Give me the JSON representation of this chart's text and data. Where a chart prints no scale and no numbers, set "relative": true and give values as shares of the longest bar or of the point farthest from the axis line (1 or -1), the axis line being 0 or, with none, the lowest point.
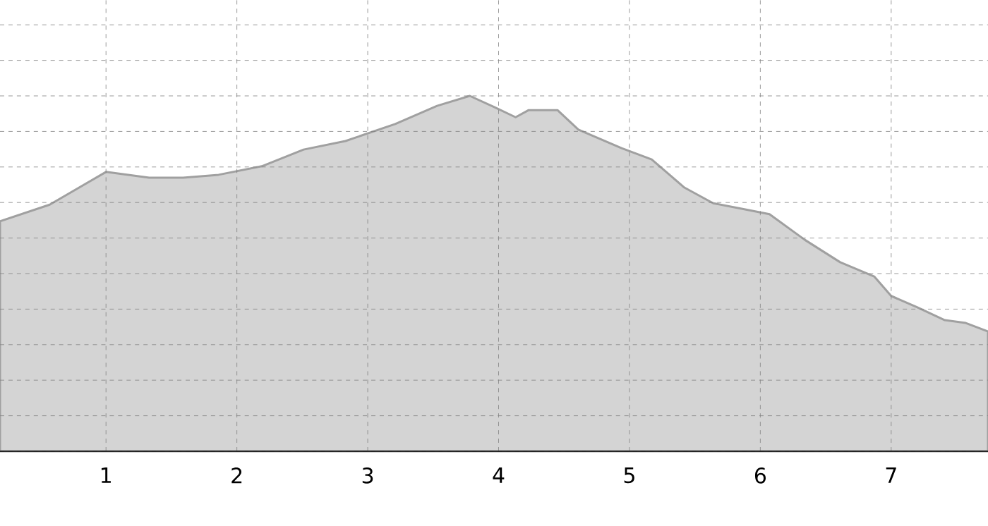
{
  "chart_data": {
    "type": "area",
    "relative": true,
    "grid": true,
    "xlim": [
      0.19,
      7.74
    ],
    "xticks": [
      1,
      2,
      3,
      4,
      5,
      6,
      7
    ],
    "series": [
      {
        "color": "#a0a0a0",
        "x": [
          0.19,
          0.57,
          1.0,
          1.33,
          1.59,
          1.86,
          2.19,
          2.51,
          2.83,
          3.21,
          3.53,
          3.78,
          3.97,
          4.13,
          4.23,
          4.45,
          4.61,
          4.94,
          5.17,
          5.42,
          5.64,
          5.85,
          6.07,
          6.34,
          6.61,
          6.87,
          7.0,
          7.2,
          7.41,
          7.57,
          7.74
        ],
        "values": [
          0.647,
          0.694,
          0.786,
          0.77,
          0.77,
          0.778,
          0.802,
          0.849,
          0.873,
          0.921,
          0.972,
          1,
          0.968,
          0.94,
          0.96,
          0.96,
          0.905,
          0.853,
          0.821,
          0.742,
          0.698,
          0.683,
          0.667,
          0.595,
          0.532,
          0.492,
          0.437,
          0.405,
          0.369,
          0.361,
          0.337
        ]
      }
    ]
  }
}
